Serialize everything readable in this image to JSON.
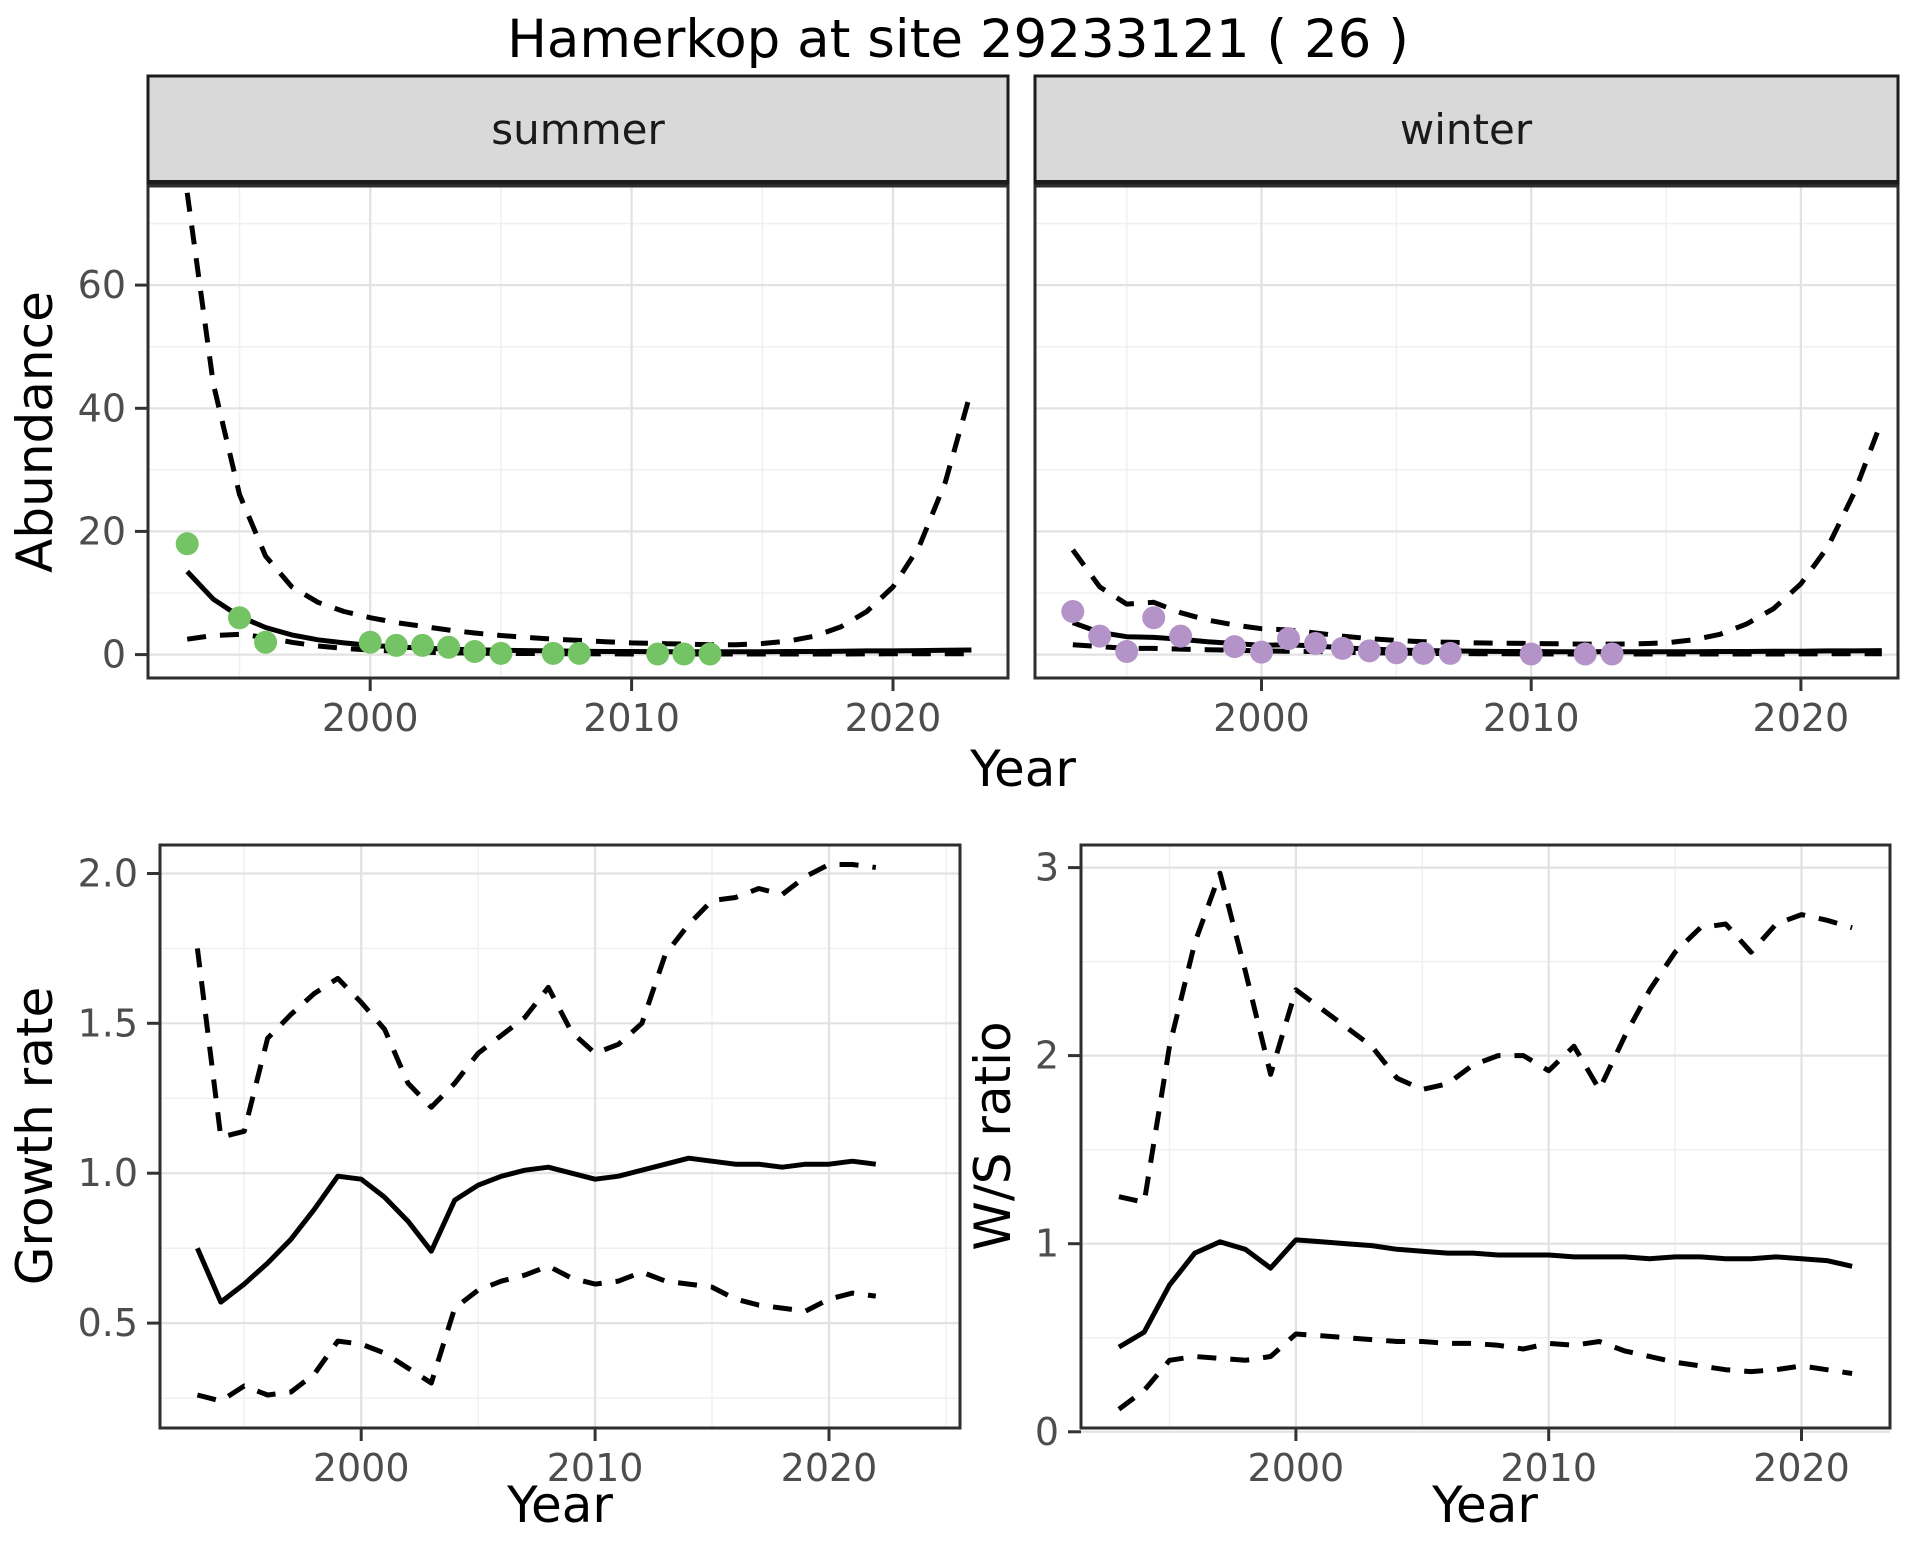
{
  "header": {
    "title": "Hamerkop at site 29233121 ( 26 )"
  },
  "labels": {
    "x_top": "Year",
    "y_top": "Abundance",
    "x_growth": "Year",
    "y_growth": "Growth rate",
    "x_ratio": "Year",
    "y_ratio": "W/S ratio",
    "strip_summer": "summer",
    "strip_winter": "winter"
  },
  "colors": {
    "summer_points": "#74c365",
    "winter_points": "#b493c8",
    "strip_bg": "#d9d9d9",
    "strip_border": "#1c1c1c",
    "grid_major": "#e2e2e2",
    "grid_minor": "#f0f0f0",
    "panel_border": "#2e2e2e",
    "tick": "#333333",
    "tick_text": "#4d4d4d",
    "line": "#000000"
  },
  "chart_data": [
    {
      "id": "summer",
      "type": "line",
      "strip": "summer",
      "xlabel": "Year",
      "ylabel": "Abundance",
      "xlim": [
        1991.5,
        2024.4
      ],
      "ylim": [
        -3.8,
        76.1
      ],
      "xticks": [
        2000,
        2010,
        2020
      ],
      "xtick_labels": [
        "2000",
        "2010",
        "2020"
      ],
      "xticks_minor": [
        1995,
        2005,
        2015
      ],
      "yticks": [
        0,
        20,
        40,
        60
      ],
      "ytick_labels": [
        "0",
        "20",
        "40",
        "60"
      ],
      "yticks_minor": [
        10,
        30,
        50,
        70
      ],
      "line_years": [
        1993,
        1994,
        1995,
        1996,
        1997,
        1998,
        1999,
        2000,
        2001,
        2002,
        2003,
        2004,
        2005,
        2006,
        2007,
        2008,
        2009,
        2010,
        2011,
        2012,
        2013,
        2014,
        2015,
        2016,
        2017,
        2018,
        2019,
        2020,
        2021,
        2022,
        2023
      ],
      "series": [
        {
          "name": "ci-upper",
          "style": "dashed",
          "y": [
            75,
            44,
            26,
            16,
            11,
            8.5,
            7.0,
            6.0,
            5.2,
            4.6,
            4.0,
            3.5,
            3.1,
            2.8,
            2.5,
            2.3,
            2.1,
            1.9,
            1.8,
            1.7,
            1.6,
            1.6,
            1.8,
            2.2,
            3.0,
            4.5,
            7.0,
            11.0,
            17.5,
            28.0,
            43.0
          ]
        },
        {
          "name": "ci-lower",
          "style": "dashed",
          "y": [
            2.5,
            3.1,
            3.3,
            2.8,
            2.0,
            1.4,
            1.0,
            0.75,
            0.55,
            0.4,
            0.3,
            0.25,
            0.2,
            0.18,
            0.15,
            0.13,
            0.12,
            0.1,
            0.1,
            0.1,
            0.1,
            0.1,
            0.1,
            0.1,
            0.1,
            0.1,
            0.12,
            0.13,
            0.15,
            0.15,
            0.15
          ]
        },
        {
          "name": "model-fit",
          "style": "solid",
          "y": [
            13.5,
            9.0,
            6.2,
            4.4,
            3.2,
            2.4,
            1.9,
            1.5,
            1.25,
            1.05,
            0.9,
            0.8,
            0.7,
            0.65,
            0.6,
            0.55,
            0.5,
            0.5,
            0.45,
            0.45,
            0.45,
            0.45,
            0.45,
            0.5,
            0.5,
            0.55,
            0.6,
            0.6,
            0.65,
            0.7,
            0.75
          ]
        },
        {
          "name": "observed",
          "style": "points",
          "color": "#74c365",
          "years": [
            1993,
            1995,
            1996,
            2000,
            2001,
            2002,
            2003,
            2004,
            2005,
            2007,
            2008,
            2011,
            2012,
            2013
          ],
          "values": [
            18,
            6,
            2,
            2,
            1.5,
            1.5,
            1.2,
            0.5,
            0.2,
            0.2,
            0.2,
            0.1,
            0.1,
            0.1
          ]
        }
      ]
    },
    {
      "id": "winter",
      "type": "line",
      "strip": "winter",
      "xlabel": "Year",
      "ylabel": "Abundance",
      "xlim": [
        1991.6,
        2023.6
      ],
      "ylim": [
        -3.8,
        76.1
      ],
      "xticks": [
        2000,
        2010,
        2020
      ],
      "xtick_labels": [
        "2000",
        "2010",
        "2020"
      ],
      "xticks_minor": [
        1995,
        2005,
        2015
      ],
      "yticks": [
        0,
        20,
        40,
        60
      ],
      "ytick_labels": null,
      "yticks_minor": [
        10,
        30,
        50,
        70
      ],
      "line_years": [
        1993,
        1994,
        1995,
        1996,
        1997,
        1998,
        1999,
        2000,
        2001,
        2002,
        2003,
        2004,
        2005,
        2006,
        2007,
        2008,
        2009,
        2010,
        2011,
        2012,
        2013,
        2014,
        2015,
        2016,
        2017,
        2018,
        2019,
        2020,
        2021,
        2022,
        2023
      ],
      "series": [
        {
          "name": "ci-upper",
          "style": "dashed",
          "y": [
            17,
            11,
            8.2,
            8.5,
            6.8,
            5.6,
            4.8,
            4.2,
            4.0,
            3.5,
            3.0,
            2.6,
            2.3,
            2.1,
            2.0,
            1.9,
            1.85,
            1.8,
            1.75,
            1.7,
            1.7,
            1.75,
            1.9,
            2.4,
            3.3,
            5.0,
            7.5,
            11.5,
            17.5,
            26.5,
            38.0
          ]
        },
        {
          "name": "ci-lower",
          "style": "dashed",
          "y": [
            1.6,
            1.3,
            1.0,
            1.0,
            0.9,
            0.8,
            0.7,
            0.6,
            0.55,
            0.5,
            0.4,
            0.3,
            0.25,
            0.2,
            0.18,
            0.15,
            0.13,
            0.12,
            0.1,
            0.1,
            0.1,
            0.1,
            0.1,
            0.1,
            0.1,
            0.1,
            0.1,
            0.12,
            0.13,
            0.14,
            0.15
          ]
        },
        {
          "name": "model-fit",
          "style": "solid",
          "y": [
            5.2,
            3.6,
            2.9,
            2.8,
            2.5,
            2.1,
            1.8,
            1.5,
            1.6,
            1.4,
            1.1,
            0.9,
            0.75,
            0.65,
            0.6,
            0.55,
            0.5,
            0.5,
            0.45,
            0.45,
            0.45,
            0.45,
            0.45,
            0.45,
            0.5,
            0.5,
            0.55,
            0.55,
            0.6,
            0.6,
            0.65
          ]
        },
        {
          "name": "observed",
          "style": "points",
          "color": "#b493c8",
          "years": [
            1993,
            1994,
            1995,
            1996,
            1997,
            1999,
            2000,
            2001,
            2002,
            2003,
            2004,
            2005,
            2006,
            2007,
            2010,
            2012,
            2013
          ],
          "values": [
            7,
            3,
            0.5,
            6,
            3,
            1.3,
            0.4,
            2.6,
            1.8,
            1.0,
            0.6,
            0.3,
            0.2,
            0.2,
            0.1,
            0.1,
            0.1
          ]
        }
      ]
    },
    {
      "id": "growth",
      "type": "line",
      "strip": null,
      "xlabel": "Year",
      "ylabel": "Growth rate",
      "xlim": [
        1991.4,
        2025.6
      ],
      "ylim": [
        0.15,
        2.095
      ],
      "xticks": [
        2000,
        2010,
        2020
      ],
      "xtick_labels": [
        "2000",
        "2010",
        "2020"
      ],
      "xticks_minor": [
        1995,
        2005,
        2015,
        2025
      ],
      "yticks": [
        0.5,
        1.0,
        1.5,
        2.0
      ],
      "ytick_labels": [
        "0.5",
        "1.0",
        "1.5",
        "2.0"
      ],
      "yticks_minor": [
        0.25,
        0.75,
        1.25,
        1.75
      ],
      "line_years": [
        1993,
        1994,
        1995,
        1996,
        1997,
        1998,
        1999,
        2000,
        2001,
        2002,
        2003,
        2004,
        2005,
        2006,
        2007,
        2008,
        2009,
        2010,
        2011,
        2012,
        2013,
        2014,
        2015,
        2016,
        2017,
        2018,
        2019,
        2020,
        2021,
        2022
      ],
      "series": [
        {
          "name": "ci-upper",
          "style": "dashed",
          "y": [
            1.75,
            1.12,
            1.14,
            1.45,
            1.53,
            1.6,
            1.65,
            1.57,
            1.48,
            1.3,
            1.22,
            1.3,
            1.4,
            1.46,
            1.52,
            1.62,
            1.47,
            1.4,
            1.43,
            1.5,
            1.73,
            1.83,
            1.91,
            1.92,
            1.95,
            1.93,
            1.99,
            2.03,
            2.03,
            2.02
          ]
        },
        {
          "name": "ci-lower",
          "style": "dashed",
          "y": [
            0.26,
            0.24,
            0.29,
            0.26,
            0.27,
            0.33,
            0.44,
            0.43,
            0.4,
            0.35,
            0.3,
            0.55,
            0.61,
            0.64,
            0.66,
            0.69,
            0.65,
            0.63,
            0.64,
            0.67,
            0.64,
            0.63,
            0.62,
            0.58,
            0.56,
            0.55,
            0.54,
            0.58,
            0.6,
            0.59
          ]
        },
        {
          "name": "model-fit",
          "style": "solid",
          "y": [
            0.75,
            0.57,
            0.63,
            0.7,
            0.78,
            0.88,
            0.99,
            0.98,
            0.92,
            0.84,
            0.74,
            0.91,
            0.96,
            0.99,
            1.01,
            1.02,
            1.0,
            0.98,
            0.99,
            1.01,
            1.03,
            1.05,
            1.04,
            1.03,
            1.03,
            1.02,
            1.03,
            1.03,
            1.04,
            1.03
          ]
        }
      ]
    },
    {
      "id": "ratio",
      "type": "line",
      "strip": null,
      "xlabel": "Year",
      "ylabel": "W/S ratio",
      "xlim": [
        1991.5,
        2023.5
      ],
      "ylim": [
        0.02,
        3.12
      ],
      "xticks": [
        2000,
        2010,
        2020
      ],
      "xtick_labels": [
        "2000",
        "2010",
        "2020"
      ],
      "xticks_minor": [
        1995,
        2005,
        2015
      ],
      "yticks": [
        0,
        1,
        2,
        3
      ],
      "ytick_labels": [
        "0",
        "1",
        "2",
        "3"
      ],
      "yticks_minor": [
        0.5,
        1.5,
        2.5
      ],
      "line_years": [
        1993,
        1994,
        1995,
        1996,
        1997,
        1998,
        1999,
        2000,
        2001,
        2002,
        2003,
        2004,
        2005,
        2006,
        2007,
        2008,
        2009,
        2010,
        2011,
        2012,
        2013,
        2014,
        2015,
        2016,
        2017,
        2018,
        2019,
        2020,
        2021,
        2022
      ],
      "series": [
        {
          "name": "ci-upper",
          "style": "dashed",
          "y": [
            1.25,
            1.22,
            2.05,
            2.6,
            2.97,
            2.45,
            1.9,
            2.35,
            2.25,
            2.15,
            2.05,
            1.88,
            1.82,
            1.85,
            1.95,
            2.0,
            2.0,
            1.92,
            2.05,
            1.82,
            2.1,
            2.35,
            2.55,
            2.68,
            2.7,
            2.55,
            2.7,
            2.75,
            2.72,
            2.68
          ]
        },
        {
          "name": "ci-lower",
          "style": "dashed",
          "y": [
            0.12,
            0.22,
            0.38,
            0.4,
            0.39,
            0.38,
            0.4,
            0.52,
            0.51,
            0.5,
            0.49,
            0.48,
            0.48,
            0.47,
            0.47,
            0.46,
            0.44,
            0.47,
            0.46,
            0.48,
            0.43,
            0.4,
            0.37,
            0.35,
            0.33,
            0.32,
            0.33,
            0.35,
            0.33,
            0.31
          ]
        },
        {
          "name": "model-fit",
          "style": "solid",
          "y": [
            0.45,
            0.53,
            0.78,
            0.95,
            1.01,
            0.97,
            0.87,
            1.02,
            1.01,
            1.0,
            0.99,
            0.97,
            0.96,
            0.95,
            0.95,
            0.94,
            0.94,
            0.94,
            0.93,
            0.93,
            0.93,
            0.92,
            0.93,
            0.93,
            0.92,
            0.92,
            0.93,
            0.92,
            0.91,
            0.88
          ]
        }
      ]
    }
  ]
}
